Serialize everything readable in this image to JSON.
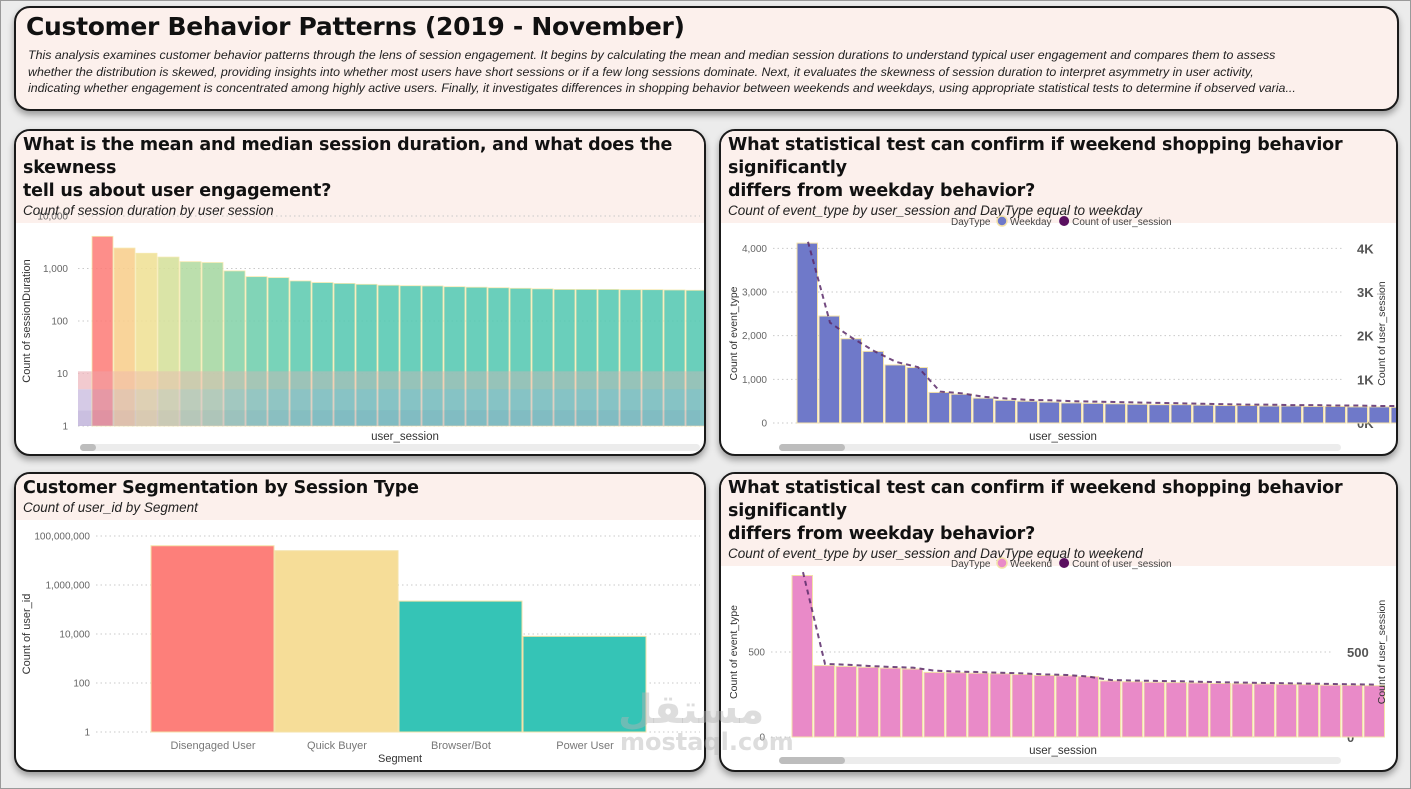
{
  "header": {
    "title": "Customer Behavior Patterns (2019 - November)",
    "description_lines": [
      "This analysis examines customer behavior patterns through the lens of session engagement. It begins by calculating the mean and median session durations to understand typical user engagement and compares them to assess",
      "whether the distribution is skewed, providing insights into whether most users have short sessions or if a few long sessions dominate. Next, it evaluates the skewness of session duration to interpret asymmetry in user activity,",
      "indicating whether engagement is concentrated among highly active users. Finally, it investigates differences in shopping behavior between weekends and weekdays, using appropriate statistical tests to determine if observed varia..."
    ]
  },
  "panels": {
    "session_duration": {
      "title_line1": "What is the mean and median session duration, and what does the skewness",
      "title_line2": "tell us about user engagement?",
      "subtitle": "Count of session duration by user session"
    },
    "weekday": {
      "title_line1": "What statistical test can confirm if weekend shopping behavior significantly",
      "title_line2": "differs from weekday behavior?",
      "subtitle": "Count of event_type by user_session and DayType equal to weekday"
    },
    "segmentation": {
      "title_line1": "Customer Segmentation by Session Type",
      "subtitle": "Count of user_id by Segment"
    },
    "weekend": {
      "title_line1": "What statistical test can confirm if weekend shopping behavior significantly",
      "title_line2": "differs from weekday behavior?",
      "subtitle": "Count of event_type by user_session and DayType equal to weekend"
    }
  },
  "watermark": {
    "arabic": "مستقل",
    "latin": "mostaql.com"
  },
  "chart_data": [
    {
      "id": "session_duration",
      "type": "bar",
      "scale": "log",
      "title": "Count of session duration by user session",
      "xlabel": "user_session",
      "ylabel": "Count of sessionDuration",
      "ylim": [
        1,
        10000
      ],
      "yticks": [
        1,
        10,
        100,
        1000,
        10000
      ],
      "ytick_labels": [
        "1",
        "10",
        "100",
        "1,000",
        "10,000"
      ],
      "grid": true,
      "values": [
        4100,
        2450,
        1950,
        1650,
        1350,
        1300,
        900,
        700,
        670,
        580,
        540,
        520,
        500,
        480,
        470,
        465,
        450,
        440,
        430,
        420,
        410,
        400,
        400,
        400,
        395,
        395,
        390,
        385
      ],
      "colors": [
        "#fd7f7a",
        "#f9cf8d",
        "#f0e196",
        "#d6e19c",
        "#b3dba2",
        "#a6d8a2",
        "#86d3aa",
        "#70cfae",
        "#66cdb0",
        "#5fcbb1",
        "#5bcab2",
        "#58c9b2",
        "#57c9b2",
        "#56c9b2",
        "#56c9b2",
        "#56c9b2",
        "#56c9b2",
        "#56c9b2",
        "#56c9b2",
        "#56c9b2",
        "#56c9b2",
        "#56c9b2",
        "#56c9b2",
        "#56c9b2",
        "#56c9b2",
        "#56c9b2",
        "#56c9b2",
        "#56c9b2"
      ],
      "reference_bands": [
        {
          "from": 5,
          "to": 11,
          "color": "#eeb8bf"
        },
        {
          "from": 2,
          "to": 5,
          "color": "#c7b8dd"
        },
        {
          "from": 1,
          "to": 2,
          "color": "#b8a9d6"
        }
      ]
    },
    {
      "id": "weekday",
      "type": "bar",
      "title": "Count of event_type by user_session and DayType equal to weekday",
      "xlabel": "user_session",
      "ylabel": "Count of event_type",
      "y2label": "Count of user_session",
      "ylim": [
        0,
        4100
      ],
      "yticks": [
        0,
        1000,
        2000,
        3000,
        4000
      ],
      "ytick_labels": [
        "0",
        "1,000",
        "2,000",
        "3,000",
        "4,000"
      ],
      "y2tick_labels": [
        "0K",
        "1K",
        "2K",
        "3K",
        "4K"
      ],
      "legend_title": "DayType",
      "legend": [
        {
          "name": "Weekday",
          "color": "#6f79c9"
        },
        {
          "name": "Count of user_session",
          "color": "#5a1060"
        }
      ],
      "legend_position": "top-center",
      "grid": true,
      "bar_color": "#6f79c9",
      "line_color": "#5a2a6a",
      "values": [
        4120,
        2450,
        1930,
        1640,
        1330,
        1270,
        700,
        660,
        570,
        520,
        500,
        480,
        460,
        450,
        440,
        430,
        420,
        420,
        410,
        400,
        400,
        390,
        390,
        380,
        380,
        370,
        370,
        360,
        350
      ],
      "line_values": [
        4150,
        2300,
        1950,
        1650,
        1400,
        1280,
        720,
        680,
        600,
        560,
        530,
        520,
        500,
        490,
        480,
        470,
        460,
        450,
        440,
        430,
        420,
        420,
        410,
        410,
        400,
        400,
        390,
        390,
        380
      ]
    },
    {
      "id": "segmentation",
      "type": "bar",
      "scale": "log",
      "title": "Count of user_id by Segment",
      "xlabel": "Segment",
      "ylabel": "Count of user_id",
      "ylim": [
        1,
        100000000
      ],
      "yticks": [
        1,
        100,
        10000,
        1000000,
        100000000
      ],
      "ytick_labels": [
        "1",
        "100",
        "10,000",
        "1,000,000",
        "100,000,000"
      ],
      "grid": true,
      "categories": [
        "Disengaged User",
        "Quick Buyer",
        "Browser/Bot",
        "Power User"
      ],
      "values": [
        40000000,
        25000000,
        220000,
        8000
      ],
      "colors": [
        "#fd7f7a",
        "#f6dd98",
        "#35c4b6",
        "#35c4b6"
      ]
    },
    {
      "id": "weekend",
      "type": "bar",
      "title": "Count of event_type by user_session and DayType equal to weekend",
      "xlabel": "user_session",
      "ylabel": "Count of event_type",
      "y2label": "Count of user_session",
      "ylim": [
        0,
        1000
      ],
      "yticks": [
        0,
        500
      ],
      "ytick_labels": [
        "0",
        "500"
      ],
      "y2tick_labels": [
        "0",
        "500"
      ],
      "legend_title": "DayType",
      "legend": [
        {
          "name": "Weekend",
          "color": "#e98ac8"
        },
        {
          "name": "Count of user_session",
          "color": "#5a1060"
        }
      ],
      "legend_position": "top-center",
      "grid": true,
      "bar_color": "#e98ac8",
      "line_color": "#5a2a6a",
      "values": [
        950,
        420,
        415,
        410,
        405,
        400,
        380,
        378,
        375,
        372,
        368,
        362,
        360,
        355,
        330,
        325,
        322,
        320,
        318,
        315,
        313,
        312,
        310,
        308,
        305,
        304,
        302
      ],
      "line_values": [
        970,
        430,
        425,
        418,
        412,
        408,
        390,
        385,
        382,
        378,
        374,
        368,
        365,
        355,
        335,
        332,
        330,
        328,
        325,
        322,
        320,
        318,
        316,
        314,
        312,
        310,
        308
      ]
    }
  ]
}
